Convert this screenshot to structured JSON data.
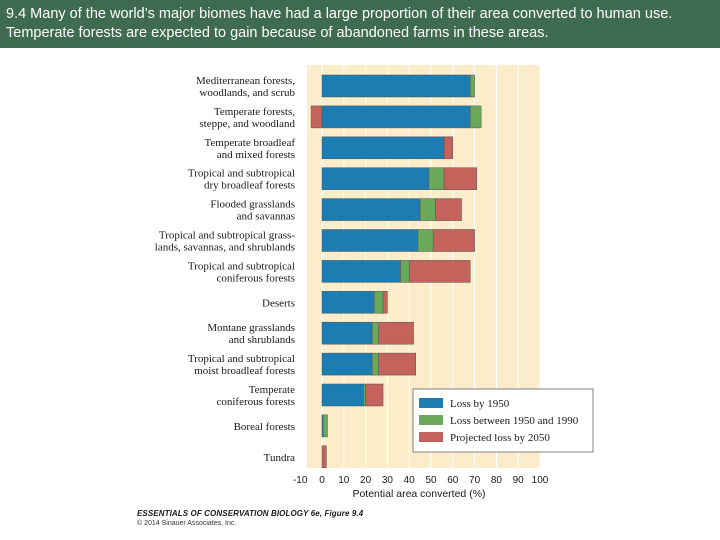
{
  "header": {
    "caption": "9.4 Many of the world’s major biomes have had a large proportion of their area converted to human use.  Temperate forests are expected to gain because of abandoned farms in these areas."
  },
  "chart_data": {
    "type": "bar",
    "orientation": "horizontal",
    "stacked": true,
    "categories": [
      [
        "Mediterranean forests,",
        "woodlands, and scrub"
      ],
      [
        "Temperate forests,",
        "steppe, and woodland"
      ],
      [
        "Temperate broadleaf",
        "and mixed forests"
      ],
      [
        "Tropical and subtropical",
        "dry broadleaf forests"
      ],
      [
        "Flooded grasslands",
        "and savannas"
      ],
      [
        "Tropical and subtropical grass-",
        "lands, savannas, and shrublands"
      ],
      [
        "Tropical and subtropical",
        "coniferous forests"
      ],
      [
        "Deserts"
      ],
      [
        "Montane grasslands",
        "and shrublands"
      ],
      [
        "Tropical and subtropical",
        "moist broadleaf forests"
      ],
      [
        "Temperate",
        "coniferous forests"
      ],
      [
        "Boreal forests"
      ],
      [
        "Tundra"
      ]
    ],
    "series": [
      {
        "name": "Loss by 1950",
        "color": "#1b7db1",
        "values": [
          68,
          68,
          56,
          49,
          45,
          44,
          36,
          24,
          23,
          23,
          19,
          0.5,
          0
        ]
      },
      {
        "name": "Loss between 1950 and 1990",
        "color": "#6aa85a",
        "values": [
          2,
          5,
          0,
          7,
          7,
          7,
          4,
          4,
          3,
          3,
          1,
          2,
          0
        ]
      },
      {
        "name": "Projected loss by 2050",
        "color": "#c4625c",
        "values": [
          0,
          -5,
          4,
          15,
          12,
          19,
          28,
          2,
          16,
          17,
          8,
          0,
          2
        ]
      }
    ],
    "xlabel": "Potential area converted (%)",
    "ylabel": "",
    "xlim": [
      -10,
      100
    ],
    "xticks": [
      -10,
      0,
      10,
      20,
      30,
      40,
      50,
      60,
      70,
      80,
      90,
      100
    ],
    "legend_position": "bottom-right",
    "background_color": "#fbedc9",
    "grid": "vertical"
  },
  "credit": {
    "book": "ESSENTIALS OF CONSERVATION BIOLOGY 6e, Figure 9.4",
    "copyright": "© 2014 Sinauer Associates, Inc."
  }
}
